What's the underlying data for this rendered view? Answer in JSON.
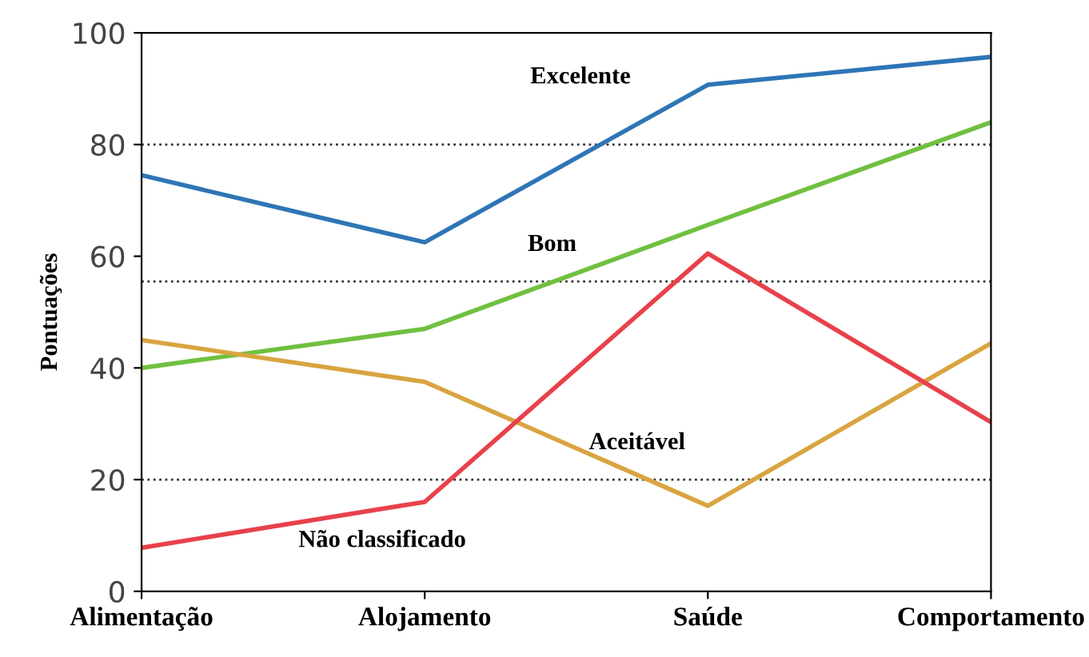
{
  "chart_data": {
    "type": "line",
    "ylabel": "Pontuações",
    "categories": [
      "Alimentação",
      "Alojamento",
      "Saúde",
      "Comportamento"
    ],
    "series": [
      {
        "name": "Excelente",
        "color": "#2e75b6",
        "values": [
          74.5,
          62.5,
          90.7,
          95.7
        ]
      },
      {
        "name": "Bom",
        "color": "#70c040",
        "values": [
          40,
          47,
          65.6,
          84
        ]
      },
      {
        "name": "Aceitável",
        "color": "#d9a441",
        "values": [
          45,
          37.5,
          15.3,
          44.4
        ]
      },
      {
        "name": "Não classificado",
        "color": "#e8414b",
        "values": [
          7.8,
          16,
          60.5,
          30.3
        ]
      }
    ],
    "ylim": [
      0,
      100
    ],
    "yticks": [
      0,
      20,
      40,
      60,
      80,
      100
    ],
    "ref_lines": [
      {
        "axis": "y",
        "value": 20,
        "line_style": "dotted",
        "color": "#333333"
      },
      {
        "axis": "y",
        "value": 55.5,
        "line_style": "dotted",
        "color": "#333333"
      },
      {
        "axis": "y",
        "value": 80,
        "line_style": "dotted",
        "color": "#333333"
      }
    ],
    "grid": false,
    "legend": false,
    "marker": "none",
    "line_style": "solid"
  }
}
